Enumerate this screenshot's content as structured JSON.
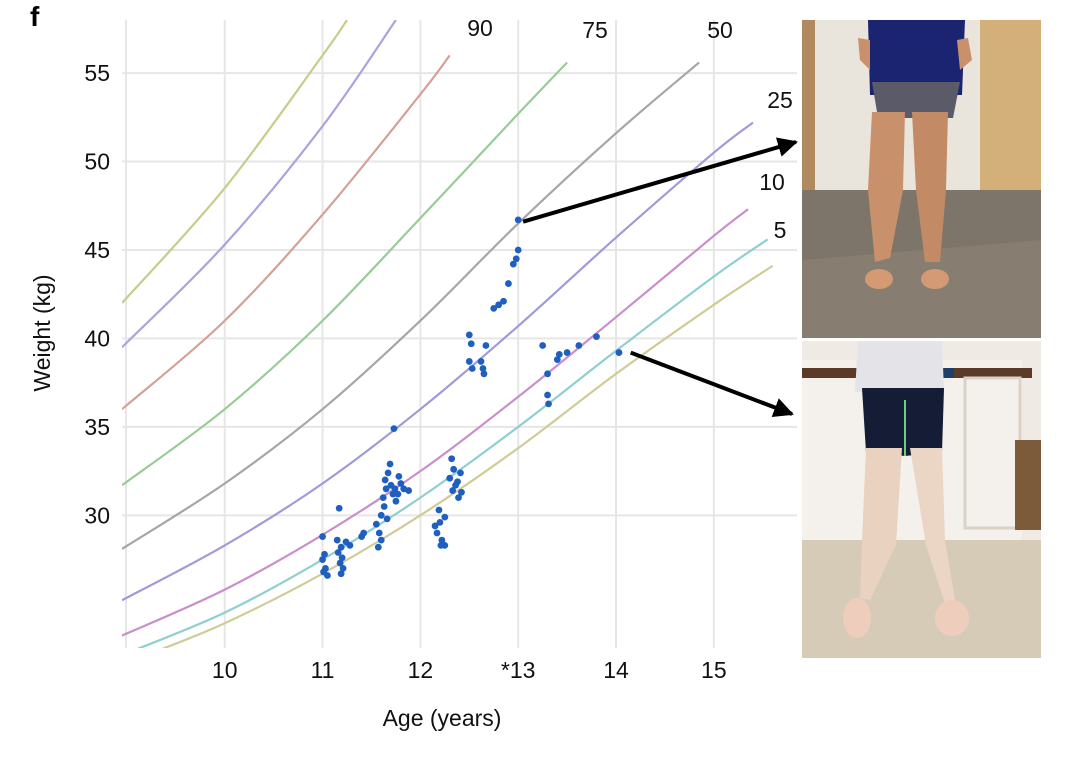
{
  "panel_label": "f",
  "chart_data": {
    "type": "scatter",
    "xlabel": "Age (years)",
    "ylabel": "Weight (kg)",
    "x_tick_labels": [
      "10",
      "11",
      "12",
      "*13",
      "14",
      "15"
    ],
    "x_ticks": [
      10,
      11,
      12,
      13,
      14,
      15
    ],
    "y_ticks": [
      30,
      35,
      40,
      45,
      50,
      55
    ],
    "xlim": [
      8.95,
      15.85
    ],
    "ylim": [
      22.5,
      58
    ],
    "grid": true,
    "percentile_curves": [
      {
        "label": "",
        "color": "#c8cc8a",
        "x": [
          8.95,
          10.0,
          11.0,
          11.25
        ],
        "y": [
          42.0,
          48.5,
          56.0,
          58.0
        ]
      },
      {
        "label": "",
        "color": "#a9a4de",
        "x": [
          8.95,
          10.0,
          11.0,
          11.75
        ],
        "y": [
          39.5,
          45.3,
          52.0,
          58.0
        ]
      },
      {
        "label": "",
        "color": "#d4a196",
        "x": [
          8.95,
          10.0,
          11.0,
          12.0,
          12.3
        ],
        "y": [
          36.0,
          41.0,
          47.0,
          53.8,
          56.0
        ]
      },
      {
        "label": "90",
        "color": "#98cc96",
        "x": [
          8.95,
          10.0,
          11.0,
          12.0,
          13.0,
          13.5
        ],
        "y": [
          31.7,
          36.0,
          41.0,
          46.8,
          52.7,
          55.6
        ]
      },
      {
        "label": "75",
        "color": "#a6a6a6",
        "x": [
          8.95,
          10.0,
          11.0,
          12.0,
          13.0,
          14.0,
          14.85
        ],
        "y": [
          28.1,
          31.8,
          36.0,
          41.0,
          46.5,
          51.6,
          55.6
        ]
      },
      {
        "label": "50",
        "color": "#9f9ad9",
        "x": [
          8.95,
          10.0,
          11.0,
          12.0,
          13.0,
          14.0,
          15.0,
          15.4
        ],
        "y": [
          25.2,
          28.3,
          31.8,
          36.0,
          40.7,
          45.7,
          50.5,
          52.2
        ]
      },
      {
        "label": "25",
        "color": "#c98fcc",
        "x": [
          8.95,
          10.0,
          11.0,
          12.0,
          13.0,
          14.0,
          15.0,
          15.35
        ],
        "y": [
          23.2,
          25.8,
          28.9,
          32.5,
          36.7,
          41.2,
          45.8,
          47.3
        ]
      },
      {
        "label": "10",
        "color": "#8fcfcf",
        "x": [
          8.95,
          10.0,
          11.0,
          12.0,
          13.0,
          14.0,
          15.0,
          15.55
        ],
        "y": [
          22.1,
          24.5,
          27.5,
          31.0,
          35.0,
          39.3,
          43.5,
          45.6
        ]
      },
      {
        "label": "5",
        "color": "#cfcc97",
        "x": [
          9.2,
          10.0,
          11.0,
          12.0,
          13.0,
          14.0,
          15.0,
          15.6
        ],
        "y": [
          22.1,
          23.9,
          26.7,
          30.0,
          33.8,
          38.0,
          41.9,
          44.1
        ]
      }
    ],
    "points": [
      {
        "x": 11.0,
        "y": 28.8
      },
      {
        "x": 11.02,
        "y": 27.8
      },
      {
        "x": 11.0,
        "y": 27.5
      },
      {
        "x": 11.03,
        "y": 27.0
      },
      {
        "x": 11.01,
        "y": 26.8
      },
      {
        "x": 11.05,
        "y": 26.6
      },
      {
        "x": 11.17,
        "y": 30.4
      },
      {
        "x": 11.15,
        "y": 28.6
      },
      {
        "x": 11.19,
        "y": 28.2
      },
      {
        "x": 11.16,
        "y": 27.9
      },
      {
        "x": 11.2,
        "y": 27.6
      },
      {
        "x": 11.18,
        "y": 27.3
      },
      {
        "x": 11.21,
        "y": 27.0
      },
      {
        "x": 11.19,
        "y": 26.7
      },
      {
        "x": 11.24,
        "y": 28.5
      },
      {
        "x": 11.28,
        "y": 28.3
      },
      {
        "x": 11.42,
        "y": 29.0
      },
      {
        "x": 11.4,
        "y": 28.8
      },
      {
        "x": 11.55,
        "y": 29.5
      },
      {
        "x": 11.58,
        "y": 29.0
      },
      {
        "x": 11.6,
        "y": 28.6
      },
      {
        "x": 11.57,
        "y": 28.2
      },
      {
        "x": 11.6,
        "y": 30.0
      },
      {
        "x": 11.63,
        "y": 30.5
      },
      {
        "x": 11.62,
        "y": 31.0
      },
      {
        "x": 11.65,
        "y": 31.5
      },
      {
        "x": 11.64,
        "y": 32.0
      },
      {
        "x": 11.67,
        "y": 32.4
      },
      {
        "x": 11.69,
        "y": 32.9
      },
      {
        "x": 11.73,
        "y": 34.9
      },
      {
        "x": 11.7,
        "y": 31.7
      },
      {
        "x": 11.72,
        "y": 31.2
      },
      {
        "x": 11.75,
        "y": 30.8
      },
      {
        "x": 11.74,
        "y": 31.5
      },
      {
        "x": 11.78,
        "y": 32.2
      },
      {
        "x": 11.8,
        "y": 31.8
      },
      {
        "x": 11.77,
        "y": 31.2
      },
      {
        "x": 11.83,
        "y": 31.5
      },
      {
        "x": 11.88,
        "y": 31.4
      },
      {
        "x": 11.66,
        "y": 29.8
      },
      {
        "x": 12.15,
        "y": 29.4
      },
      {
        "x": 12.17,
        "y": 29.0
      },
      {
        "x": 12.19,
        "y": 30.3
      },
      {
        "x": 12.2,
        "y": 29.6
      },
      {
        "x": 12.22,
        "y": 28.6
      },
      {
        "x": 12.25,
        "y": 28.3
      },
      {
        "x": 12.21,
        "y": 28.3
      },
      {
        "x": 12.25,
        "y": 29.9
      },
      {
        "x": 12.32,
        "y": 33.2
      },
      {
        "x": 12.34,
        "y": 32.6
      },
      {
        "x": 12.3,
        "y": 32.1
      },
      {
        "x": 12.36,
        "y": 31.7
      },
      {
        "x": 12.33,
        "y": 31.4
      },
      {
        "x": 12.38,
        "y": 31.9
      },
      {
        "x": 12.41,
        "y": 32.4
      },
      {
        "x": 12.42,
        "y": 31.3
      },
      {
        "x": 12.39,
        "y": 31.0
      },
      {
        "x": 12.5,
        "y": 40.2
      },
      {
        "x": 12.52,
        "y": 39.7
      },
      {
        "x": 12.5,
        "y": 38.7
      },
      {
        "x": 12.53,
        "y": 38.3
      },
      {
        "x": 12.62,
        "y": 38.7
      },
      {
        "x": 12.64,
        "y": 38.3
      },
      {
        "x": 12.65,
        "y": 38.0
      },
      {
        "x": 12.67,
        "y": 39.6
      },
      {
        "x": 12.75,
        "y": 41.7
      },
      {
        "x": 12.8,
        "y": 41.9
      },
      {
        "x": 12.85,
        "y": 42.1
      },
      {
        "x": 12.9,
        "y": 43.1
      },
      {
        "x": 12.95,
        "y": 44.2
      },
      {
        "x": 12.98,
        "y": 44.5
      },
      {
        "x": 13.0,
        "y": 45.0
      },
      {
        "x": 13.0,
        "y": 46.7
      },
      {
        "x": 13.25,
        "y": 39.6
      },
      {
        "x": 13.3,
        "y": 38.0
      },
      {
        "x": 13.3,
        "y": 36.8
      },
      {
        "x": 13.31,
        "y": 36.3
      },
      {
        "x": 13.4,
        "y": 38.8
      },
      {
        "x": 13.42,
        "y": 39.1
      },
      {
        "x": 13.5,
        "y": 39.2
      },
      {
        "x": 13.62,
        "y": 39.6
      },
      {
        "x": 13.8,
        "y": 40.1
      },
      {
        "x": 14.03,
        "y": 39.2
      }
    ]
  },
  "photos": [
    {
      "name": "top",
      "arrow_from": {
        "x": 13.05,
        "y": 46.6
      }
    },
    {
      "name": "bottom",
      "arrow_from": {
        "x": 14.15,
        "y": 39.2
      }
    }
  ]
}
